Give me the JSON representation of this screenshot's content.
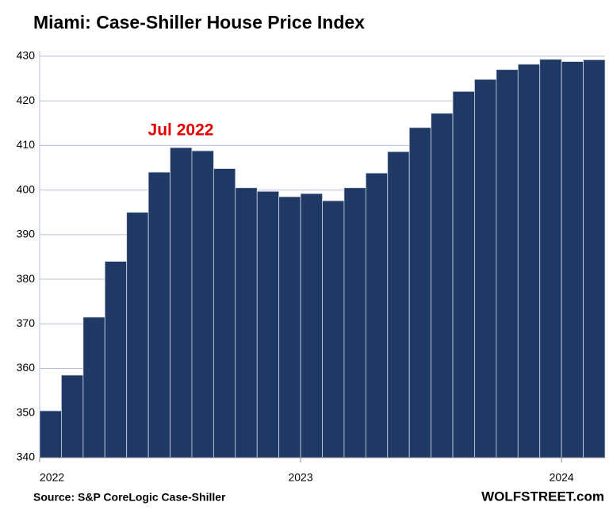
{
  "chart_data": {
    "type": "bar",
    "title": "Miami: Case-Shiller House Price Index",
    "annotation": "Jul 2022",
    "source": "Source: S&P CoreLogic Case-Shiller",
    "watermark": "WOLFSTREET.com",
    "categories": [
      "2022",
      null,
      null,
      null,
      null,
      null,
      null,
      null,
      null,
      null,
      null,
      null,
      "2023",
      null,
      null,
      null,
      null,
      null,
      null,
      null,
      null,
      null,
      null,
      null,
      "2024",
      null
    ],
    "values": [
      350.5,
      358.5,
      371.5,
      384,
      395,
      404,
      409.5,
      408.8,
      404.8,
      400.5,
      399.7,
      398.5,
      399.2,
      397.6,
      400.5,
      403.8,
      408.6,
      414,
      417.2,
      422.1,
      424.8,
      427,
      428.2,
      429.3,
      428.8,
      429.2
    ],
    "color": "#1f3864",
    "ylim": [
      340,
      433
    ],
    "yticks": [
      340,
      350,
      360,
      370,
      380,
      390,
      400,
      410,
      420,
      430
    ],
    "grid": true
  }
}
